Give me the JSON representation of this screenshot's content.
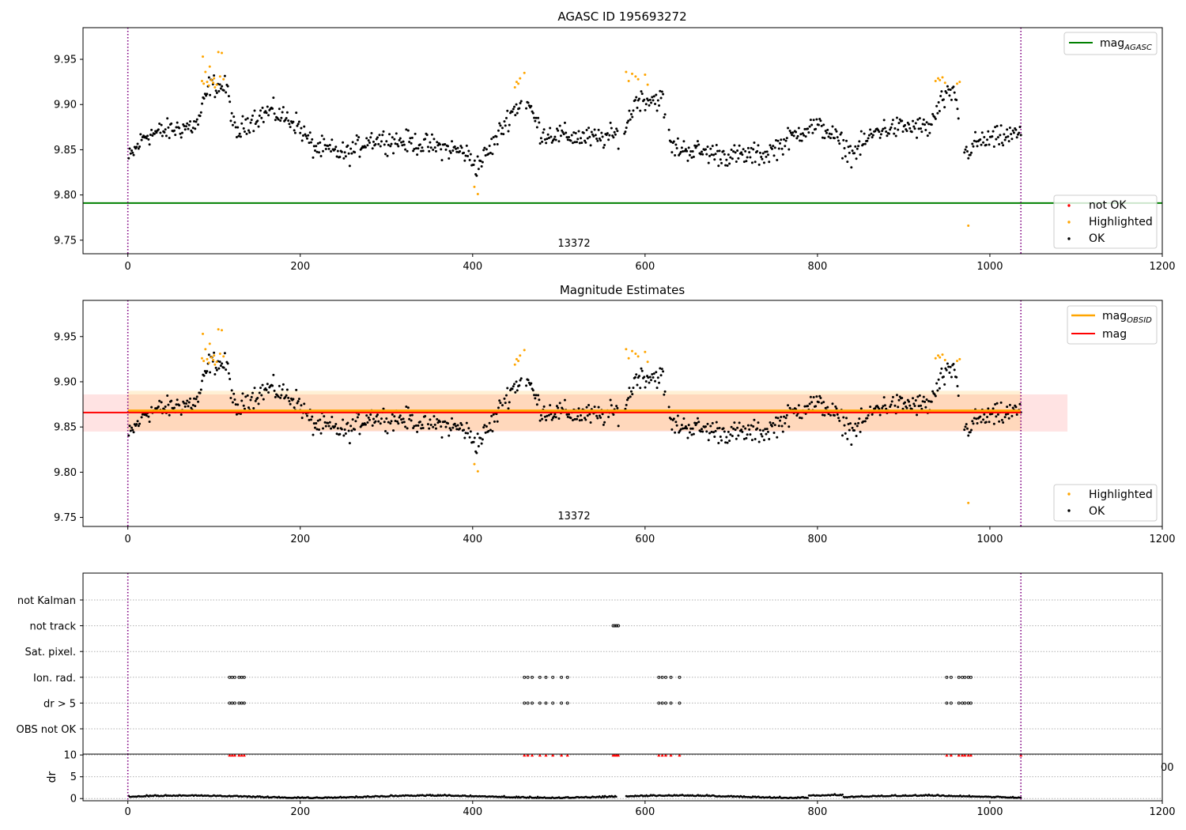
{
  "figure": {
    "title_top": "AGASC ID 195693272",
    "title_mid": "Magnitude Estimates"
  },
  "colors": {
    "ok": "#000000",
    "highlighted": "#ffa500",
    "not_ok": "#ff0000",
    "agasc_line": "#008000",
    "mag_obsid_line": "#ffa500",
    "mag_line": "#ff0000",
    "obs_boundary": "#800080"
  },
  "chart_data": [
    {
      "type": "scatter",
      "title": "AGASC ID 195693272",
      "xlim": [
        -52,
        1200
      ],
      "ylim": [
        9.735,
        9.985
      ],
      "xticks": [
        "0",
        "200",
        "400",
        "600",
        "800",
        "1000",
        "1200"
      ],
      "yticks": [
        "9.75",
        "9.80",
        "9.85",
        "9.90",
        "9.95"
      ],
      "obs_boundaries": [
        0,
        1036
      ],
      "obsid_label": "13372",
      "obsid_label_x": 518,
      "legend_lines": [
        {
          "label_base": "mag",
          "label_sub": "AGASC",
          "value": 9.791
        }
      ],
      "legend_points": [
        "not OK",
        "Highlighted",
        "OK"
      ],
      "series": [
        {
          "name": "OK",
          "x_range": [
            0,
            1036
          ],
          "y_baseline": 9.866
        },
        {
          "name": "Highlighted",
          "points": [
            [
              87,
              9.953
            ],
            [
              90,
              9.936
            ],
            [
              95,
              9.942
            ],
            [
              100,
              9.929
            ],
            [
              105,
              9.958
            ],
            [
              109,
              9.957
            ],
            [
              402,
              9.809
            ],
            [
              406,
              9.801
            ],
            [
              451,
              9.925
            ],
            [
              455,
              9.929
            ],
            [
              460,
              9.935
            ],
            [
              578,
              9.936
            ],
            [
              585,
              9.934
            ],
            [
              600,
              9.933
            ],
            [
              940,
              9.929
            ],
            [
              945,
              9.93
            ],
            [
              965,
              9.925
            ],
            [
              975,
              9.766
            ]
          ]
        }
      ]
    },
    {
      "type": "scatter",
      "title": "Magnitude Estimates",
      "xlim": [
        -52,
        1200
      ],
      "ylim": [
        9.74,
        9.99
      ],
      "xticks": [
        "0",
        "200",
        "400",
        "600",
        "800",
        "1000",
        "1200"
      ],
      "yticks": [
        "9.75",
        "9.80",
        "9.85",
        "9.90",
        "9.95"
      ],
      "obs_boundaries": [
        0,
        1036
      ],
      "obsid_label": "13372",
      "obsid_label_x": 518,
      "legend_lines": [
        {
          "label_base": "mag",
          "label_sub": "OBSID",
          "value": 9.868,
          "band": [
            9.846,
            9.89
          ]
        },
        {
          "label_base": "mag",
          "label_sub": "",
          "value": 9.866,
          "band": [
            9.845,
            9.886
          ]
        }
      ],
      "legend_points": [
        "Highlighted",
        "OK"
      ]
    },
    {
      "type": "scatter",
      "title": "",
      "xlim": [
        -52,
        1200
      ],
      "categories": [
        "not Kalman",
        "not track",
        "Sat. pixel.",
        "Ion. rad.",
        "dr > 5",
        "OBS not OK"
      ],
      "flags": {
        "not track": [
          563,
          565,
          567,
          569
        ],
        "Ion. rad.": [
          118,
          121,
          124,
          129,
          132,
          135,
          460,
          464,
          469,
          478,
          485,
          493,
          503,
          510,
          616,
          620,
          624,
          630,
          640,
          950,
          955,
          964,
          968,
          971,
          975,
          978
        ],
        "dr > 5": [
          118,
          121,
          124,
          129,
          132,
          135,
          460,
          464,
          469,
          478,
          485,
          493,
          503,
          510,
          616,
          620,
          624,
          630,
          640,
          950,
          955,
          964,
          968,
          971,
          975,
          978
        ]
      }
    },
    {
      "type": "scatter",
      "title": "",
      "xlim": [
        -52,
        1200
      ],
      "ylim": [
        -0.5,
        10.2
      ],
      "ylabel": "dr",
      "yticks": [
        "0",
        "5",
        "10"
      ],
      "xticks": [
        "0",
        "200",
        "400",
        "600",
        "800",
        "1000",
        "1200"
      ],
      "stray_tick_label": "00",
      "clipped_points_y": 10
    }
  ]
}
